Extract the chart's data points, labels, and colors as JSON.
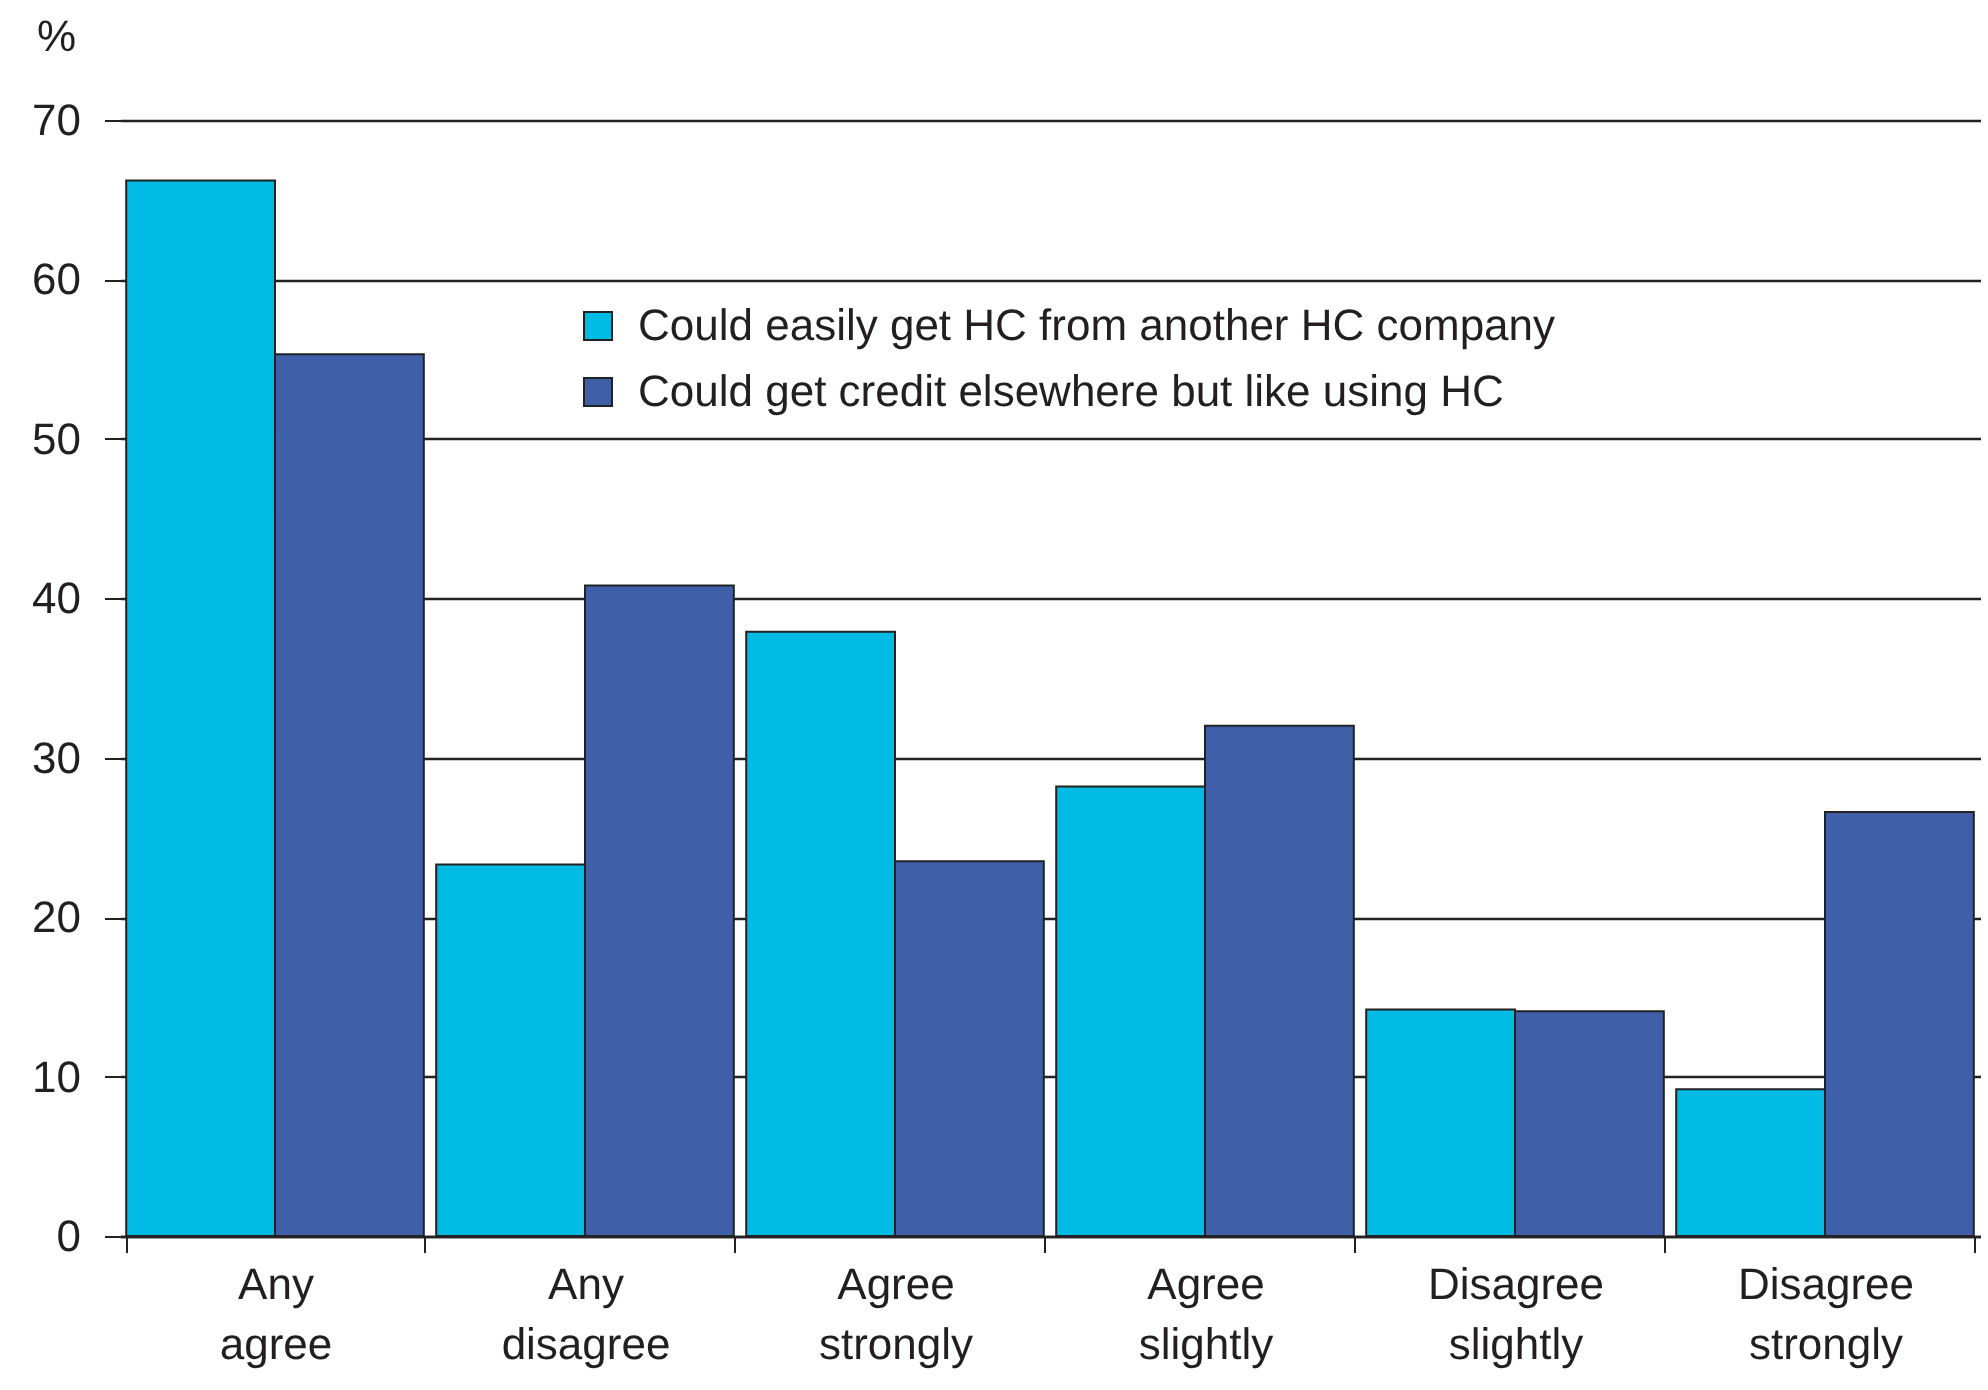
{
  "chart_data": {
    "type": "bar",
    "ylabel": "%",
    "categories": [
      "Any agree",
      "Any disagree",
      "Agree strongly",
      "Agree slightly",
      "Disagree slightly",
      "Disagree strongly"
    ],
    "series": [
      {
        "name": "Could easily get HC from another HC company",
        "color": "#00bbe4",
        "values": [
          66.2,
          23.3,
          37.9,
          28.2,
          14.2,
          9.2
        ]
      },
      {
        "name": "Could get credit elsewhere but like using HC",
        "color": "#3f5fa8",
        "values": [
          55.3,
          40.8,
          23.5,
          32.0,
          14.1,
          26.6
        ]
      }
    ],
    "ylim": [
      0,
      70
    ],
    "yticks": [
      0,
      10,
      20,
      30,
      40,
      50,
      60,
      70
    ],
    "grid": "y",
    "legend": "top"
  }
}
